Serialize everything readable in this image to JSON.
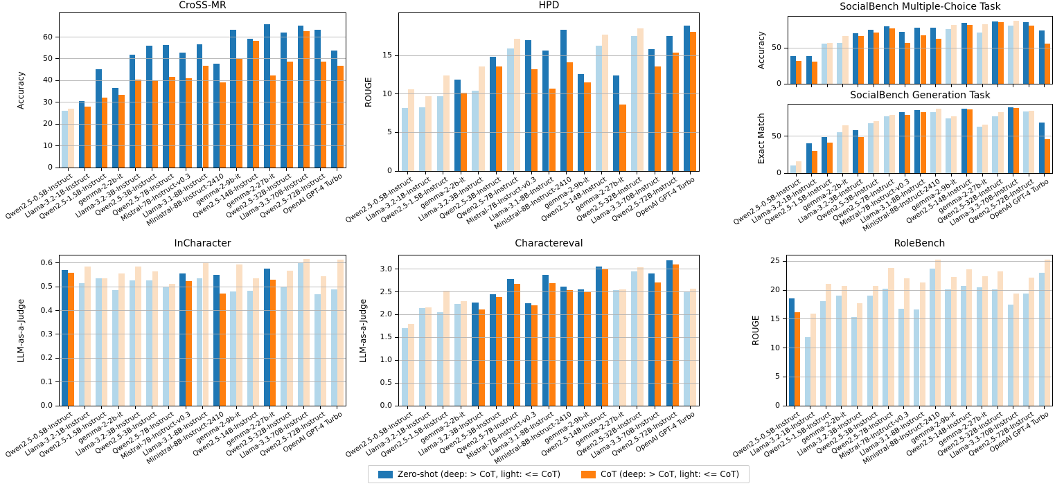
{
  "legend": {
    "zero_shot_label": "Zero-shot (deep: > CoT, light: <= CoT)",
    "cot_label": "CoT (deep: > CoT, light: <= CoT)"
  },
  "colors": {
    "deep_blue": "#1f77b4",
    "deep_orange": "#ff7f0e",
    "light_blue": "#b3d7ea",
    "light_orange": "#fbdfc3",
    "grid": "#b0b0b0"
  },
  "models": [
    "Qwen2.5-0.5B-Instruct",
    "Llama-3.2-1B-Instruct",
    "Qwen2.5-1.5B-Instruct",
    "gemma-2-2b-it",
    "Llama-3.2-3B-Instruct",
    "Qwen2.5-3B-Instruct",
    "Qwen2.5-7B-Instruct",
    "Mistral-7B-Instruct-v0.3",
    "Llama-3.1-8B-Instruct",
    "Ministral-8B-Instruct-2410",
    "gemma-2-9b-it",
    "Qwen2.5-14B-Instruct",
    "gemma-2-27b-it",
    "Qwen2.5-32B-Instruct",
    "Llama-3.3-70B-Instruct",
    "Qwen2.5-72B-Instruct",
    "OpenAI GPT-4 Turbo"
  ],
  "shade_rule": "pair drawn deep when Zero-shot > CoT, light when Zero-shot <= CoT",
  "chart_data": [
    {
      "id": "cross-mr",
      "type": "bar",
      "title": "CroSS-MR",
      "ylabel": "Accuracy",
      "ylim": [
        0,
        71
      ],
      "yticks": [
        0,
        10,
        20,
        30,
        40,
        50,
        60
      ],
      "ytick_labels": [
        "0",
        "10",
        "20",
        "30",
        "40",
        "50",
        "60"
      ],
      "grid": true,
      "series": [
        {
          "name": "Zero-shot",
          "values": [
            26.2,
            30.7,
            45.3,
            36.5,
            52.0,
            56.0,
            56.3,
            53.0,
            56.6,
            47.7,
            63.2,
            59.2,
            66.0,
            62.0,
            65.3,
            63.2,
            53.9
          ]
        },
        {
          "name": "CoT",
          "values": [
            27.1,
            28.0,
            32.3,
            33.5,
            40.5,
            40.0,
            41.7,
            41.0,
            46.8,
            39.3,
            50.0,
            58.2,
            42.2,
            48.6,
            62.8,
            48.6,
            46.8
          ]
        }
      ]
    },
    {
      "id": "hpd",
      "type": "bar",
      "title": "HPD",
      "ylabel": "ROUGE",
      "ylim": [
        0,
        20.5
      ],
      "yticks": [
        0,
        5,
        10,
        15
      ],
      "ytick_labels": [
        "0",
        "5",
        "10",
        "15"
      ],
      "grid": true,
      "series": [
        {
          "name": "Zero-shot",
          "values": [
            8.2,
            8.3,
            9.7,
            11.9,
            10.4,
            14.8,
            15.9,
            17.0,
            15.6,
            18.3,
            12.6,
            16.3,
            12.4,
            17.5,
            15.8,
            17.5,
            18.9
          ]
        },
        {
          "name": "CoT",
          "values": [
            10.6,
            9.7,
            12.4,
            10.2,
            13.6,
            13.6,
            17.2,
            13.2,
            10.7,
            14.1,
            11.5,
            17.7,
            8.6,
            18.5,
            13.6,
            15.4,
            18.1
          ]
        }
      ]
    },
    {
      "id": "socialbench-mc",
      "type": "bar",
      "title": "SocialBench Multiple-Choice Task",
      "ylabel": "Accuracy",
      "ylim": [
        0,
        94
      ],
      "yticks": [
        0,
        50
      ],
      "ytick_labels": [
        "0",
        "50"
      ],
      "grid": true,
      "series": [
        {
          "name": "Zero-shot",
          "values": [
            38.5,
            39.0,
            56.5,
            57.5,
            70.5,
            75.5,
            80.0,
            73.0,
            78.5,
            78.5,
            77.0,
            85.0,
            71.5,
            87.0,
            81.5,
            86.5,
            74.5
          ]
        },
        {
          "name": "CoT",
          "values": [
            32.0,
            31.0,
            57.5,
            66.5,
            67.0,
            71.5,
            77.5,
            57.5,
            68.0,
            63.0,
            82.5,
            82.5,
            83.0,
            86.0,
            88.0,
            81.0,
            56.0
          ]
        }
      ]
    },
    {
      "id": "socialbench-gen",
      "type": "bar",
      "title": "SocialBench Generation Task",
      "ylabel": "Exact Match",
      "ylim": [
        0,
        93
      ],
      "yticks": [
        0,
        50
      ],
      "ytick_labels": [
        "0",
        "50"
      ],
      "grid": true,
      "series": [
        {
          "name": "Zero-shot",
          "values": [
            10,
            40,
            48.5,
            55,
            58.5,
            68,
            77,
            83,
            85.5,
            82.5,
            74.5,
            87,
            63,
            77.5,
            89,
            84,
            69
          ]
        },
        {
          "name": "CoT",
          "values": [
            16,
            30,
            41,
            65,
            48.5,
            70,
            78.5,
            79,
            82.5,
            87,
            77.5,
            86,
            66,
            82.5,
            88,
            85,
            46
          ]
        }
      ]
    },
    {
      "id": "incharacter",
      "type": "bar",
      "title": "InCharacter",
      "ylabel": "LLM-as-a-Judge",
      "ylim": [
        0,
        0.632
      ],
      "yticks": [
        0,
        0.1,
        0.2,
        0.3,
        0.4,
        0.5,
        0.6
      ],
      "ytick_labels": [
        "0.0",
        "0.1",
        "0.2",
        "0.3",
        "0.4",
        "0.5",
        "0.6"
      ],
      "grid": true,
      "series": [
        {
          "name": "Zero-shot",
          "values": [
            0.57,
            0.515,
            0.535,
            0.485,
            0.527,
            0.527,
            0.497,
            0.556,
            0.537,
            0.549,
            0.48,
            0.484,
            0.577,
            0.502,
            0.6,
            0.47,
            0.49
          ]
        },
        {
          "name": "CoT",
          "values": [
            0.56,
            0.585,
            0.537,
            0.555,
            0.585,
            0.565,
            0.513,
            0.524,
            0.604,
            0.473,
            0.593,
            0.536,
            0.53,
            0.569,
            0.617,
            0.546,
            0.614
          ]
        }
      ]
    },
    {
      "id": "charactereval",
      "type": "bar",
      "title": "Charactereval",
      "ylabel": "LLM-as-a-Judge",
      "ylim": [
        0,
        3.3
      ],
      "yticks": [
        0,
        0.5,
        1.0,
        1.5,
        2.0,
        2.5,
        3.0
      ],
      "ytick_labels": [
        "0.0",
        "0.5",
        "1.0",
        "1.5",
        "2.0",
        "2.5",
        "3.0"
      ],
      "grid": true,
      "series": [
        {
          "name": "Zero-shot",
          "values": [
            1.7,
            2.14,
            2.05,
            2.23,
            2.26,
            2.45,
            2.79,
            2.25,
            2.88,
            2.61,
            2.55,
            3.06,
            2.54,
            2.95,
            2.9,
            3.2,
            2.51
          ]
        },
        {
          "name": "CoT",
          "values": [
            1.8,
            2.16,
            2.52,
            2.29,
            2.12,
            2.39,
            2.67,
            2.21,
            2.69,
            2.54,
            2.49,
            2.99,
            2.56,
            3.04,
            2.7,
            3.1,
            2.57
          ]
        }
      ]
    },
    {
      "id": "rolebench",
      "type": "bar",
      "title": "RoleBench",
      "ylabel": "ROUGE",
      "ylim": [
        0,
        26
      ],
      "yticks": [
        0,
        5,
        10,
        15,
        20,
        25
      ],
      "ytick_labels": [
        "0",
        "5",
        "10",
        "15",
        "20",
        "25"
      ],
      "grid": true,
      "series": [
        {
          "name": "Zero-shot",
          "values": [
            18.6,
            11.9,
            18.1,
            19.0,
            15.3,
            19.1,
            20.2,
            16.8,
            16.6,
            23.7,
            20.1,
            20.7,
            20.5,
            20.1,
            17.5,
            19.4,
            23.0
          ]
        },
        {
          "name": "CoT",
          "values": [
            16.2,
            15.9,
            21.1,
            20.7,
            17.7,
            20.7,
            23.9,
            22.0,
            21.3,
            25.3,
            22.3,
            23.6,
            22.4,
            23.3,
            19.4,
            22.2,
            25.3
          ]
        }
      ]
    }
  ]
}
